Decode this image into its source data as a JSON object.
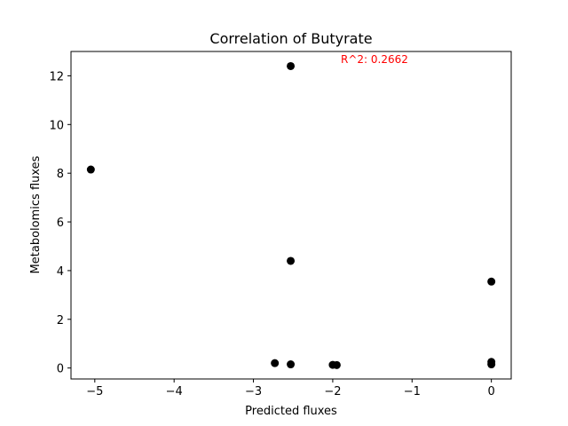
{
  "chart_data": {
    "type": "scatter",
    "title": "Correlation of Butyrate",
    "xlabel": "Predicted fluxes",
    "ylabel": "Metabolomics fluxes",
    "xlim": [
      -5.3,
      0.25
    ],
    "ylim": [
      -0.45,
      13.0
    ],
    "xticks": [
      -5,
      -4,
      -3,
      -2,
      -1,
      0
    ],
    "xtick_labels": [
      "−5",
      "−4",
      "−3",
      "−2",
      "−1",
      "0"
    ],
    "yticks": [
      0,
      2,
      4,
      6,
      8,
      10,
      12
    ],
    "ytick_labels": [
      "0",
      "2",
      "4",
      "6",
      "8",
      "10",
      "12"
    ],
    "grid": false,
    "marker_color": "#000000",
    "points": [
      {
        "x": -5.05,
        "y": 8.15
      },
      {
        "x": -2.53,
        "y": 12.4
      },
      {
        "x": -2.53,
        "y": 4.4
      },
      {
        "x": -2.73,
        "y": 0.2
      },
      {
        "x": -2.53,
        "y": 0.15
      },
      {
        "x": -2.0,
        "y": 0.13
      },
      {
        "x": -1.95,
        "y": 0.12
      },
      {
        "x": 0.0,
        "y": 3.55
      },
      {
        "x": 0.0,
        "y": 0.25
      },
      {
        "x": 0.0,
        "y": 0.15
      }
    ],
    "annotation": {
      "text": "R^2: 0.2662",
      "color": "#ff0000"
    }
  }
}
